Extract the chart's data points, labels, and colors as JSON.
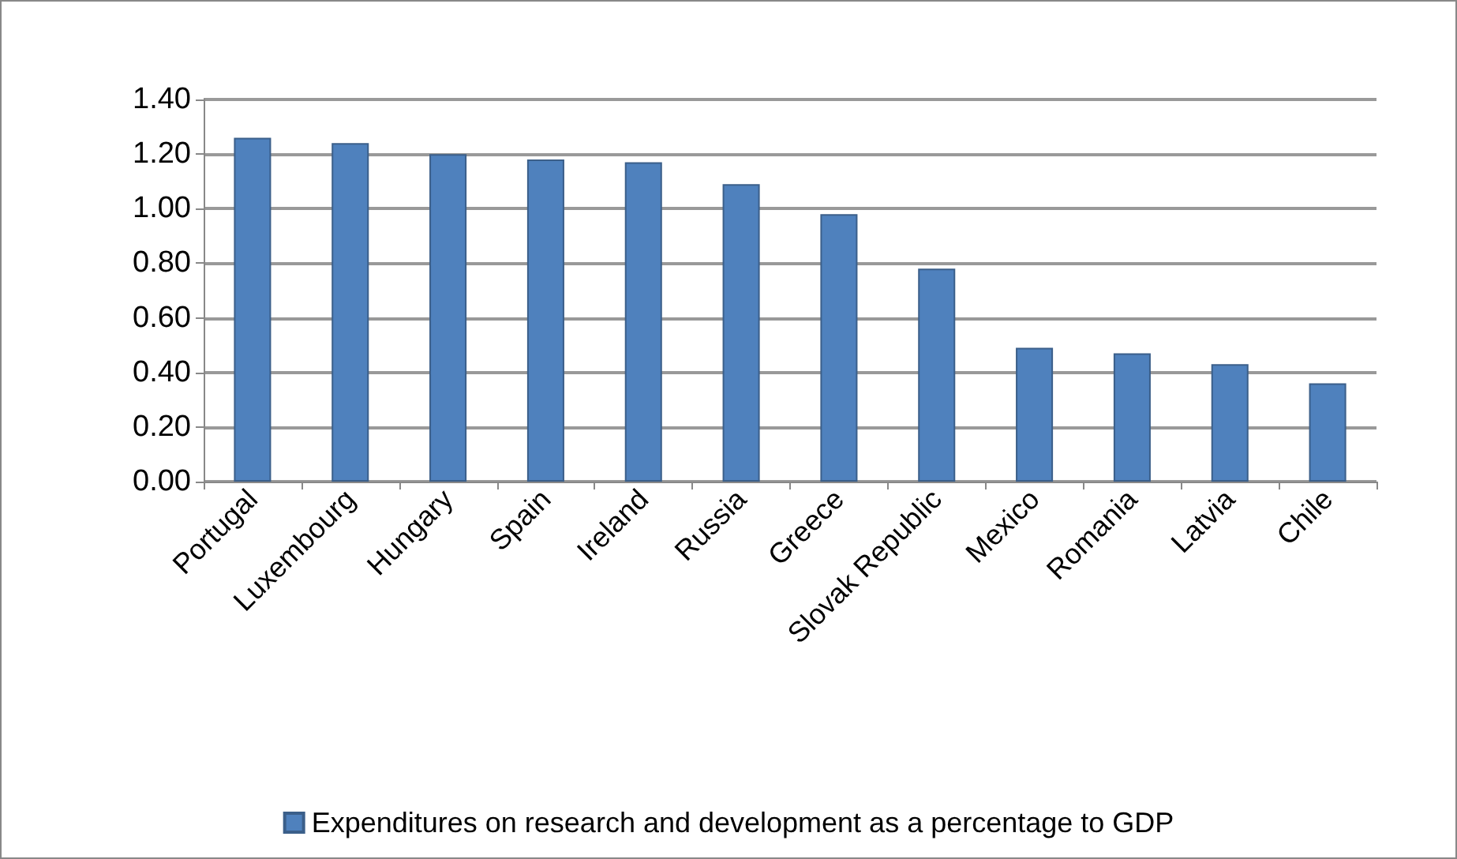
{
  "chart_data": {
    "type": "bar",
    "categories": [
      "Portugal",
      "Luxembourg",
      "Hungary",
      "Spain",
      "Ireland",
      "Russia",
      "Greece",
      "Slovak Republic",
      "Mexico",
      "Romania",
      "Latvia",
      "Chile"
    ],
    "series": [
      {
        "name": "Expenditures on research and development as a percentage to GDP",
        "color": "#4f81bd",
        "values": [
          1.26,
          1.24,
          1.2,
          1.18,
          1.17,
          1.09,
          0.98,
          0.78,
          0.49,
          0.47,
          0.43,
          0.36
        ]
      }
    ],
    "ylim": [
      0,
      1.4
    ],
    "yticks": [
      {
        "value": 0,
        "label": "0.00"
      },
      {
        "value": 0.2,
        "label": "0.20"
      },
      {
        "value": 0.4,
        "label": "0.40"
      },
      {
        "value": 0.6,
        "label": "0.60"
      },
      {
        "value": 0.8,
        "label": "0.80"
      },
      {
        "value": 1,
        "label": "1.00"
      },
      {
        "value": 1.2,
        "label": "1.20"
      },
      {
        "value": 1.4,
        "label": "1.40"
      }
    ],
    "grid": "y",
    "legend": "bottom"
  }
}
